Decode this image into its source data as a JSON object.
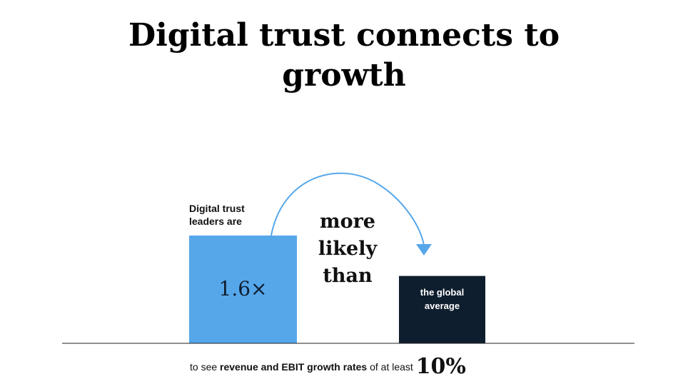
{
  "title": {
    "line1": "Digital trust connects to",
    "line2": "growth"
  },
  "chart_data": {
    "type": "bar",
    "categories": [
      "Digital trust leaders",
      "the global average"
    ],
    "values": [
      1.6,
      1.0
    ],
    "ylim": [
      0,
      1.6
    ],
    "grid": false,
    "bar_colors": [
      "#56a7ea",
      "#0f1e2e"
    ],
    "arrow_color": "#56a7ea"
  },
  "labels": {
    "leaders_line1": "Digital trust",
    "leaders_line2": "leaders are",
    "multiplier": "1.6×",
    "comparison_line1": "more",
    "comparison_line2": "likely",
    "comparison_line3": "than",
    "average_line1": "the global",
    "average_line2": "average"
  },
  "footnote": {
    "prefix": "to see ",
    "bold": "revenue and EBIT growth rates",
    "middle": " of at least ",
    "big": "10%"
  }
}
